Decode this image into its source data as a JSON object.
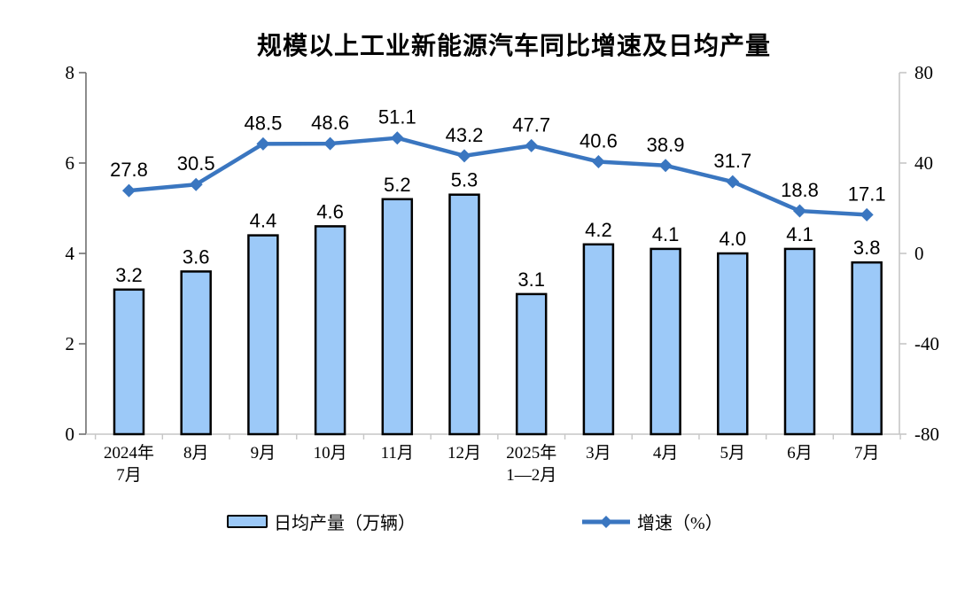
{
  "title": "规模以上工业新能源汽车同比增速及日均产量",
  "legend": {
    "bar_label": "日均产量（万辆）",
    "line_label": "增速（%）"
  },
  "chart_data": {
    "type": "bar+line combo",
    "title": "规模以上工业新能源汽车同比增速及日均产量",
    "categories": [
      [
        "2024年",
        "7月"
      ],
      [
        "8月"
      ],
      [
        "9月"
      ],
      [
        "10月"
      ],
      [
        "11月"
      ],
      [
        "12月"
      ],
      [
        "2025年",
        "1—2月"
      ],
      [
        "3月"
      ],
      [
        "4月"
      ],
      [
        "5月"
      ],
      [
        "6月"
      ],
      [
        "7月"
      ]
    ],
    "series": [
      {
        "name": "日均产量（万辆）",
        "type": "bar",
        "axis": "left",
        "values": [
          3.2,
          3.6,
          4.4,
          4.6,
          5.2,
          5.3,
          3.1,
          4.2,
          4.1,
          4.0,
          4.1,
          3.8
        ],
        "labels": [
          "3.2",
          "3.6",
          "4.4",
          "4.6",
          "5.2",
          "5.3",
          "3.1",
          "4.2",
          "4.1",
          "4.0",
          "4.1",
          "3.8"
        ]
      },
      {
        "name": "增速（%）",
        "type": "line",
        "axis": "right",
        "values": [
          27.8,
          30.5,
          48.5,
          48.6,
          51.1,
          43.2,
          47.7,
          40.6,
          38.9,
          31.7,
          18.8,
          17.1
        ],
        "labels": [
          "27.8",
          "30.5",
          "48.5",
          "48.6",
          "51.1",
          "43.2",
          "47.7",
          "40.6",
          "38.9",
          "31.7",
          "18.8",
          "17.1"
        ]
      }
    ],
    "left_axis": {
      "min": 0,
      "max": 8,
      "tick_labels": [
        "0",
        "2",
        "4",
        "6",
        "8"
      ]
    },
    "right_axis": {
      "min": -80,
      "max": 80,
      "tick_labels": [
        "-80",
        "-40",
        "0",
        "40",
        "80"
      ]
    },
    "legend_position": "bottom",
    "grid": false,
    "colors": {
      "bar_fill": "#9CC9F8",
      "bar_border": "#000000",
      "line": "#3A76C0",
      "left_axis_line": "#6f6f6f",
      "light_axis_line": "#c6c6c6",
      "text": "#000000"
    }
  }
}
